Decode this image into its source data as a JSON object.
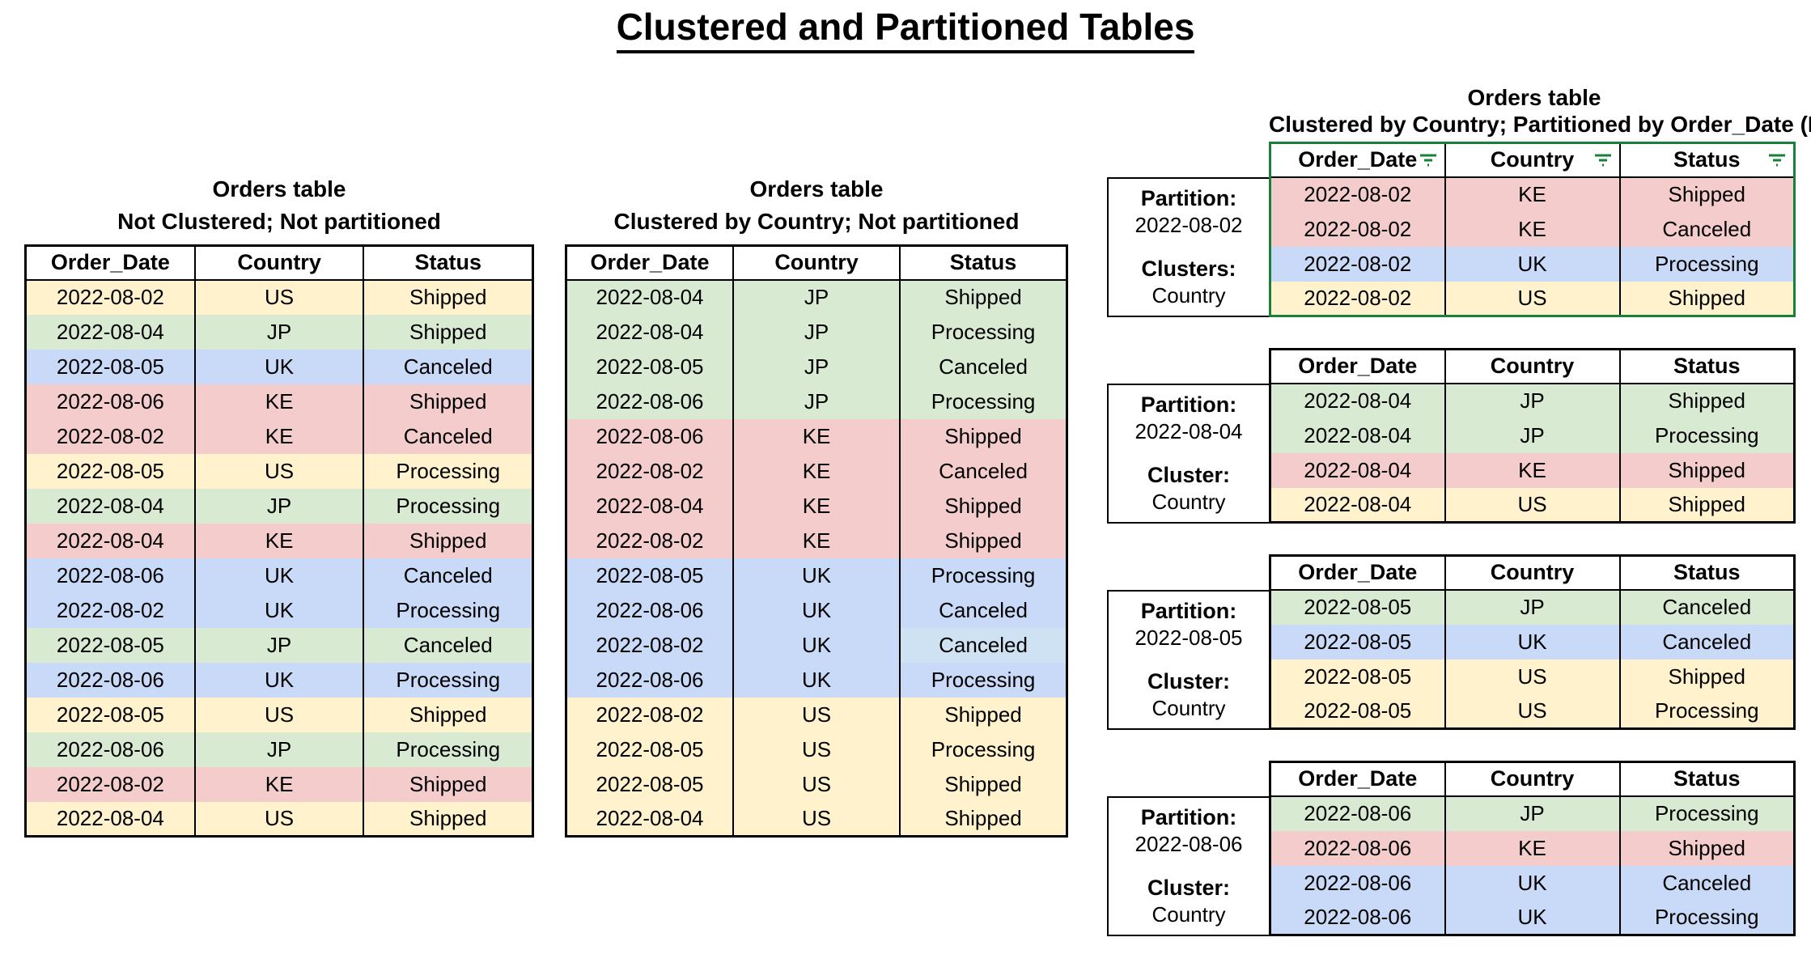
{
  "page": {
    "title": "Clustered and Partitioned Tables"
  },
  "columns": [
    "Order_Date",
    "Country",
    "Status"
  ],
  "country_colors": {
    "US": "#fff2cc",
    "JP": "#d9ead3",
    "UK": "#c9daf8",
    "KE": "#f4cccc"
  },
  "accent": {
    "filter_green": "#188038",
    "partition_border_green": "#188038",
    "light_blue_override": "#cfe2f3"
  },
  "left_table": {
    "title": "Orders table",
    "subtitle": "Not Clustered; Not partitioned",
    "rows": [
      [
        "2022-08-02",
        "US",
        "Shipped"
      ],
      [
        "2022-08-04",
        "JP",
        "Shipped"
      ],
      [
        "2022-08-05",
        "UK",
        "Canceled"
      ],
      [
        "2022-08-06",
        "KE",
        "Shipped"
      ],
      [
        "2022-08-02",
        "KE",
        "Canceled"
      ],
      [
        "2022-08-05",
        "US",
        "Processing"
      ],
      [
        "2022-08-04",
        "JP",
        "Processing"
      ],
      [
        "2022-08-04",
        "KE",
        "Shipped"
      ],
      [
        "2022-08-06",
        "UK",
        "Canceled"
      ],
      [
        "2022-08-02",
        "UK",
        "Processing"
      ],
      [
        "2022-08-05",
        "JP",
        "Canceled"
      ],
      [
        "2022-08-06",
        "UK",
        "Processing"
      ],
      [
        "2022-08-05",
        "US",
        "Shipped"
      ],
      [
        "2022-08-06",
        "JP",
        "Processing"
      ],
      [
        "2022-08-02",
        "KE",
        "Shipped"
      ],
      [
        "2022-08-04",
        "US",
        "Shipped"
      ]
    ]
  },
  "middle_table": {
    "title": "Orders table",
    "subtitle": "Clustered by Country; Not partitioned",
    "rows": [
      [
        "2022-08-04",
        "JP",
        "Shipped"
      ],
      [
        "2022-08-04",
        "JP",
        "Processing"
      ],
      [
        "2022-08-05",
        "JP",
        "Canceled"
      ],
      [
        "2022-08-06",
        "JP",
        "Processing"
      ],
      [
        "2022-08-06",
        "KE",
        "Shipped"
      ],
      [
        "2022-08-02",
        "KE",
        "Canceled"
      ],
      [
        "2022-08-04",
        "KE",
        "Shipped"
      ],
      [
        "2022-08-02",
        "KE",
        "Shipped"
      ],
      [
        "2022-08-05",
        "UK",
        "Processing"
      ],
      [
        "2022-08-06",
        "UK",
        "Canceled"
      ],
      [
        "2022-08-02",
        "UK",
        "Canceled"
      ],
      [
        "2022-08-06",
        "UK",
        "Processing"
      ],
      [
        "2022-08-02",
        "US",
        "Shipped"
      ],
      [
        "2022-08-05",
        "US",
        "Processing"
      ],
      [
        "2022-08-05",
        "US",
        "Shipped"
      ],
      [
        "2022-08-04",
        "US",
        "Shipped"
      ]
    ],
    "overrides": [
      {
        "row": 10,
        "col": 2,
        "color": "#cfe2f3"
      }
    ]
  },
  "right_section": {
    "title": "Orders table",
    "subtitle": "Clustered by Country; Partitioned by Order_Date (Daily)",
    "partitions": [
      {
        "partition_label": "Partition:",
        "partition_value": "2022-08-02",
        "cluster_label": "Clusters:",
        "cluster_value": "Country",
        "filtered": true,
        "green_border": true,
        "rows": [
          [
            "2022-08-02",
            "KE",
            "Shipped"
          ],
          [
            "2022-08-02",
            "KE",
            "Canceled"
          ],
          [
            "2022-08-02",
            "UK",
            "Processing"
          ],
          [
            "2022-08-02",
            "US",
            "Shipped"
          ]
        ]
      },
      {
        "partition_label": "Partition:",
        "partition_value": "2022-08-04",
        "cluster_label": "Cluster:",
        "cluster_value": "Country",
        "filtered": false,
        "green_border": false,
        "rows": [
          [
            "2022-08-04",
            "JP",
            "Shipped"
          ],
          [
            "2022-08-04",
            "JP",
            "Processing"
          ],
          [
            "2022-08-04",
            "KE",
            "Shipped"
          ],
          [
            "2022-08-04",
            "US",
            "Shipped"
          ]
        ]
      },
      {
        "partition_label": "Partition:",
        "partition_value": "2022-08-05",
        "cluster_label": "Cluster:",
        "cluster_value": "Country",
        "filtered": false,
        "green_border": false,
        "rows": [
          [
            "2022-08-05",
            "JP",
            "Canceled"
          ],
          [
            "2022-08-05",
            "UK",
            "Canceled"
          ],
          [
            "2022-08-05",
            "US",
            "Shipped"
          ],
          [
            "2022-08-05",
            "US",
            "Processing"
          ]
        ]
      },
      {
        "partition_label": "Partition:",
        "partition_value": "2022-08-06",
        "cluster_label": "Cluster:",
        "cluster_value": "Country",
        "filtered": false,
        "green_border": false,
        "rows": [
          [
            "2022-08-06",
            "JP",
            "Processing"
          ],
          [
            "2022-08-06",
            "KE",
            "Shipped"
          ],
          [
            "2022-08-06",
            "UK",
            "Canceled"
          ],
          [
            "2022-08-06",
            "UK",
            "Processing"
          ]
        ]
      }
    ]
  }
}
